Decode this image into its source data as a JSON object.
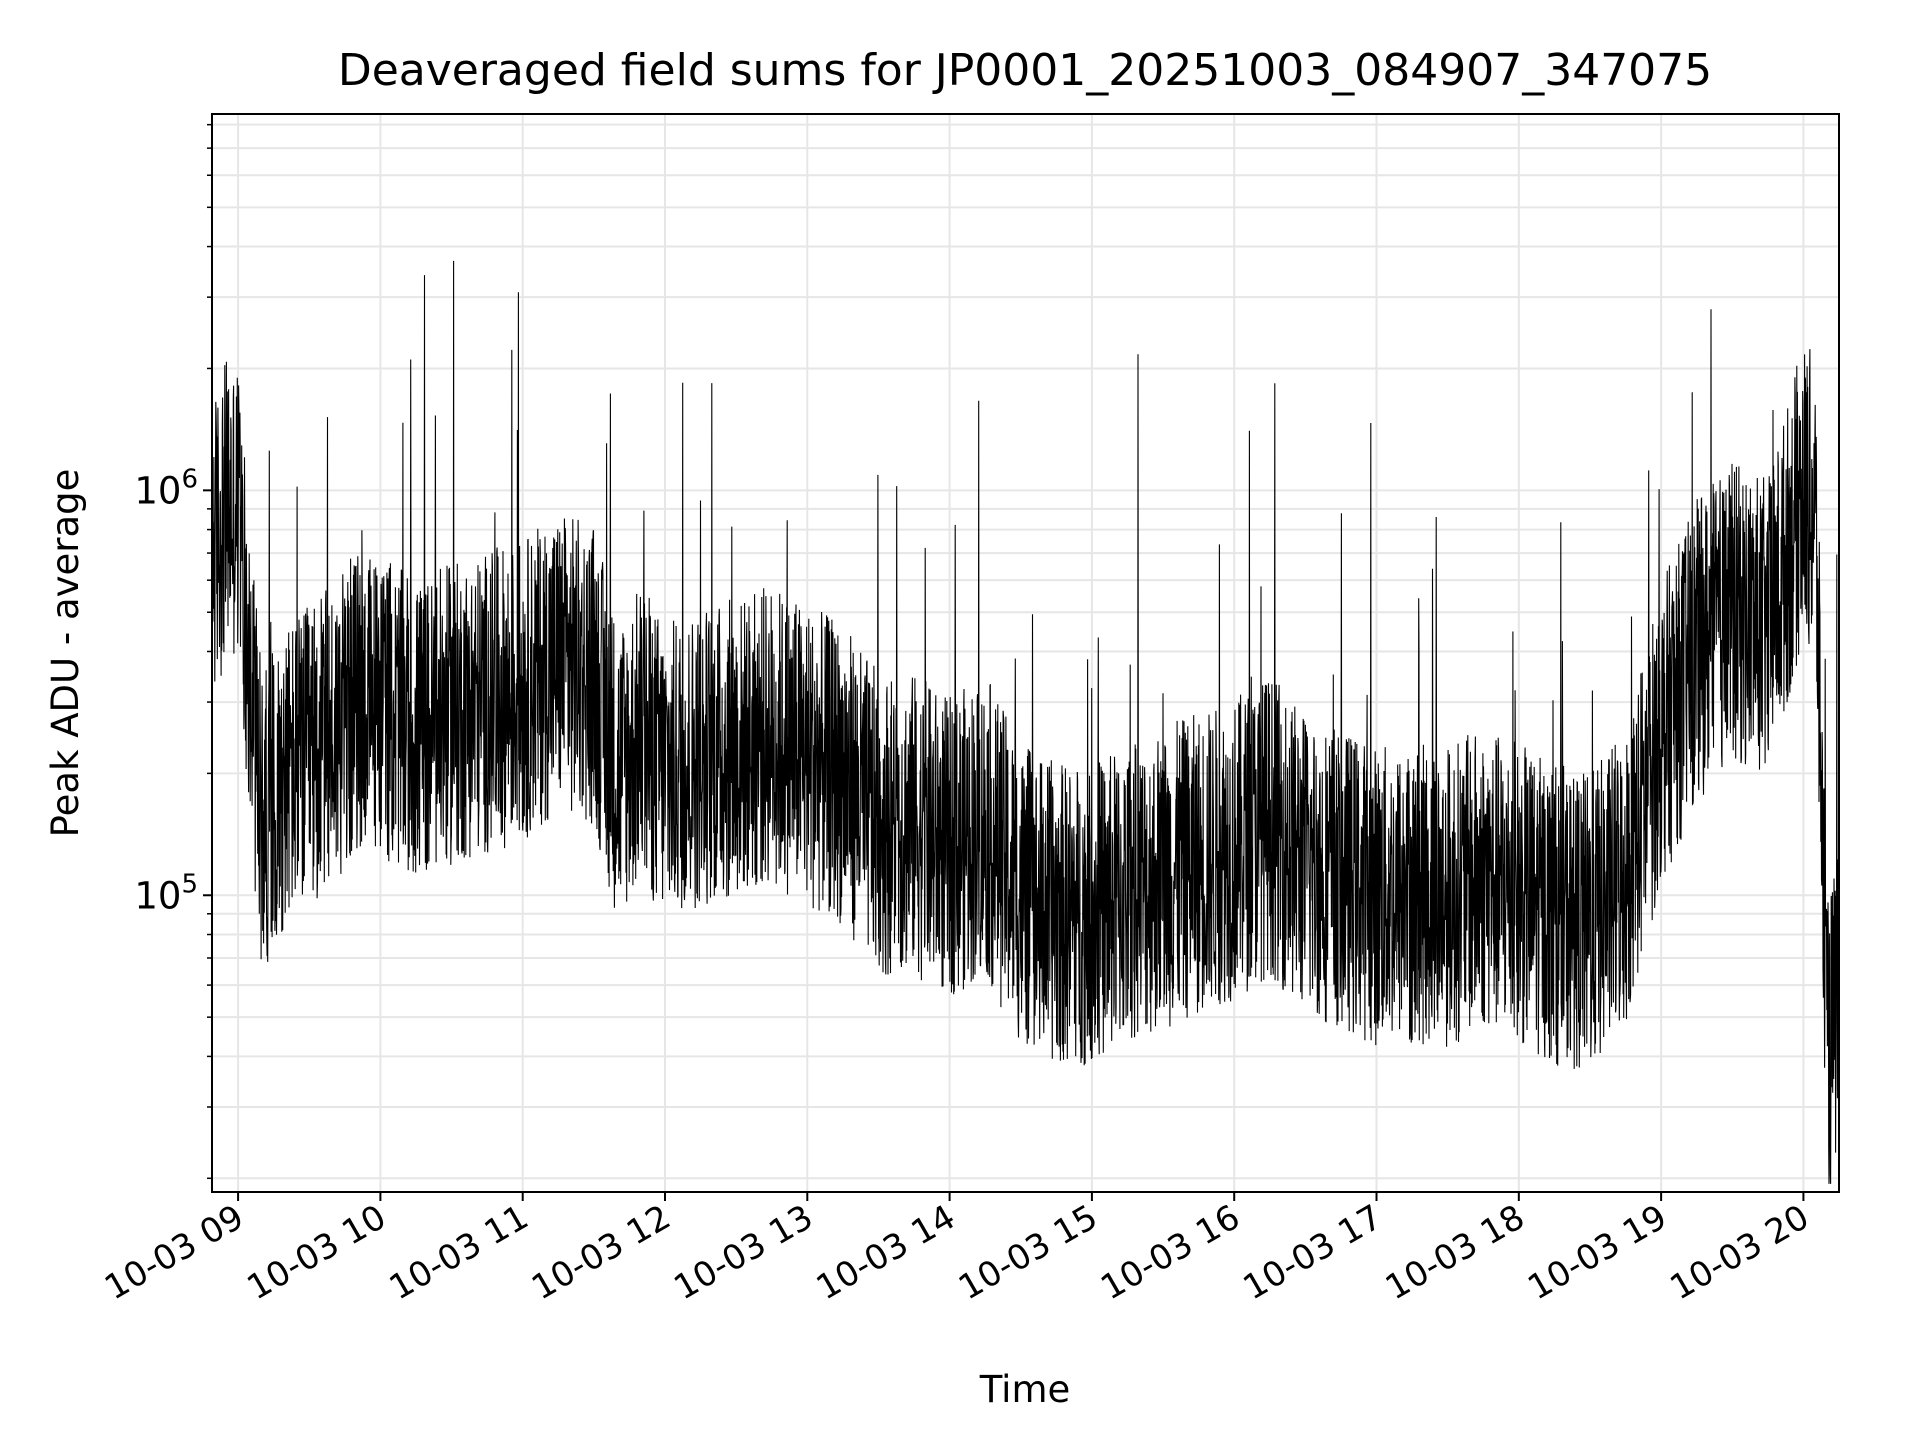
{
  "chart_data": {
    "type": "line",
    "title": "Deaveraged field sums for JP0001_20251003_084907_347075",
    "xlabel": "Time",
    "ylabel": "Peak ADU - average",
    "y_scale": "log",
    "ylim": [
      18500,
      8500000
    ],
    "xlim": [
      "2025-10-03 08:49",
      "2025-10-03 20:15"
    ],
    "grid": true,
    "grid_color": "#e6e6e6",
    "line_color": "#000000",
    "x_ticks": [
      {
        "value": "2025-10-03 09:00",
        "label": "10-03 09"
      },
      {
        "value": "2025-10-03 10:00",
        "label": "10-03 10"
      },
      {
        "value": "2025-10-03 11:00",
        "label": "10-03 11"
      },
      {
        "value": "2025-10-03 12:00",
        "label": "10-03 12"
      },
      {
        "value": "2025-10-03 13:00",
        "label": "10-03 13"
      },
      {
        "value": "2025-10-03 14:00",
        "label": "10-03 14"
      },
      {
        "value": "2025-10-03 15:00",
        "label": "10-03 15"
      },
      {
        "value": "2025-10-03 16:00",
        "label": "10-03 16"
      },
      {
        "value": "2025-10-03 17:00",
        "label": "10-03 17"
      },
      {
        "value": "2025-10-03 18:00",
        "label": "10-03 18"
      },
      {
        "value": "2025-10-03 19:00",
        "label": "10-03 19"
      },
      {
        "value": "2025-10-03 20:00",
        "label": "10-03 20"
      }
    ],
    "y_ticks": [
      {
        "value": 100000,
        "base": "10",
        "exp": "5"
      },
      {
        "value": 1000000,
        "base": "10",
        "exp": "6"
      }
    ],
    "series": [
      {
        "x": [
          "2025-10-03 08:49",
          "2025-10-03 08:55",
          "2025-10-03 09:00",
          "2025-10-03 09:05",
          "2025-10-03 09:10",
          "2025-10-03 09:20",
          "2025-10-03 09:30",
          "2025-10-03 09:40",
          "2025-10-03 09:50",
          "2025-10-03 10:00",
          "2025-10-03 10:15",
          "2025-10-03 10:30",
          "2025-10-03 10:45",
          "2025-10-03 11:00",
          "2025-10-03 11:15",
          "2025-10-03 11:30",
          "2025-10-03 11:40",
          "2025-10-03 11:50",
          "2025-10-03 12:00",
          "2025-10-03 12:15",
          "2025-10-03 12:30",
          "2025-10-03 12:45",
          "2025-10-03 13:00",
          "2025-10-03 13:15",
          "2025-10-03 13:30",
          "2025-10-03 13:45",
          "2025-10-03 14:00",
          "2025-10-03 14:15",
          "2025-10-03 14:30",
          "2025-10-03 14:45",
          "2025-10-03 15:00",
          "2025-10-03 15:15",
          "2025-10-03 15:30",
          "2025-10-03 15:45",
          "2025-10-03 16:00",
          "2025-10-03 16:15",
          "2025-10-03 16:30",
          "2025-10-03 16:45",
          "2025-10-03 17:00",
          "2025-10-03 17:15",
          "2025-10-03 17:30",
          "2025-10-03 17:45",
          "2025-10-03 18:00",
          "2025-10-03 18:15",
          "2025-10-03 18:30",
          "2025-10-03 18:45",
          "2025-10-03 19:00",
          "2025-10-03 19:15",
          "2025-10-03 19:30",
          "2025-10-03 19:45",
          "2025-10-03 20:00",
          "2025-10-03 20:05",
          "2025-10-03 20:10",
          "2025-10-03 20:15"
        ],
        "y": [
          700000,
          900000,
          900000,
          350000,
          150000,
          200000,
          220000,
          250000,
          300000,
          300000,
          250000,
          280000,
          300000,
          320000,
          380000,
          350000,
          200000,
          250000,
          200000,
          220000,
          230000,
          250000,
          220000,
          200000,
          150000,
          150000,
          130000,
          150000,
          100000,
          90000,
          90000,
          100000,
          110000,
          120000,
          130000,
          150000,
          120000,
          110000,
          100000,
          100000,
          100000,
          110000,
          100000,
          90000,
          85000,
          110000,
          250000,
          400000,
          500000,
          450000,
          1000000,
          900000,
          40000,
          55000
        ]
      }
    ]
  }
}
